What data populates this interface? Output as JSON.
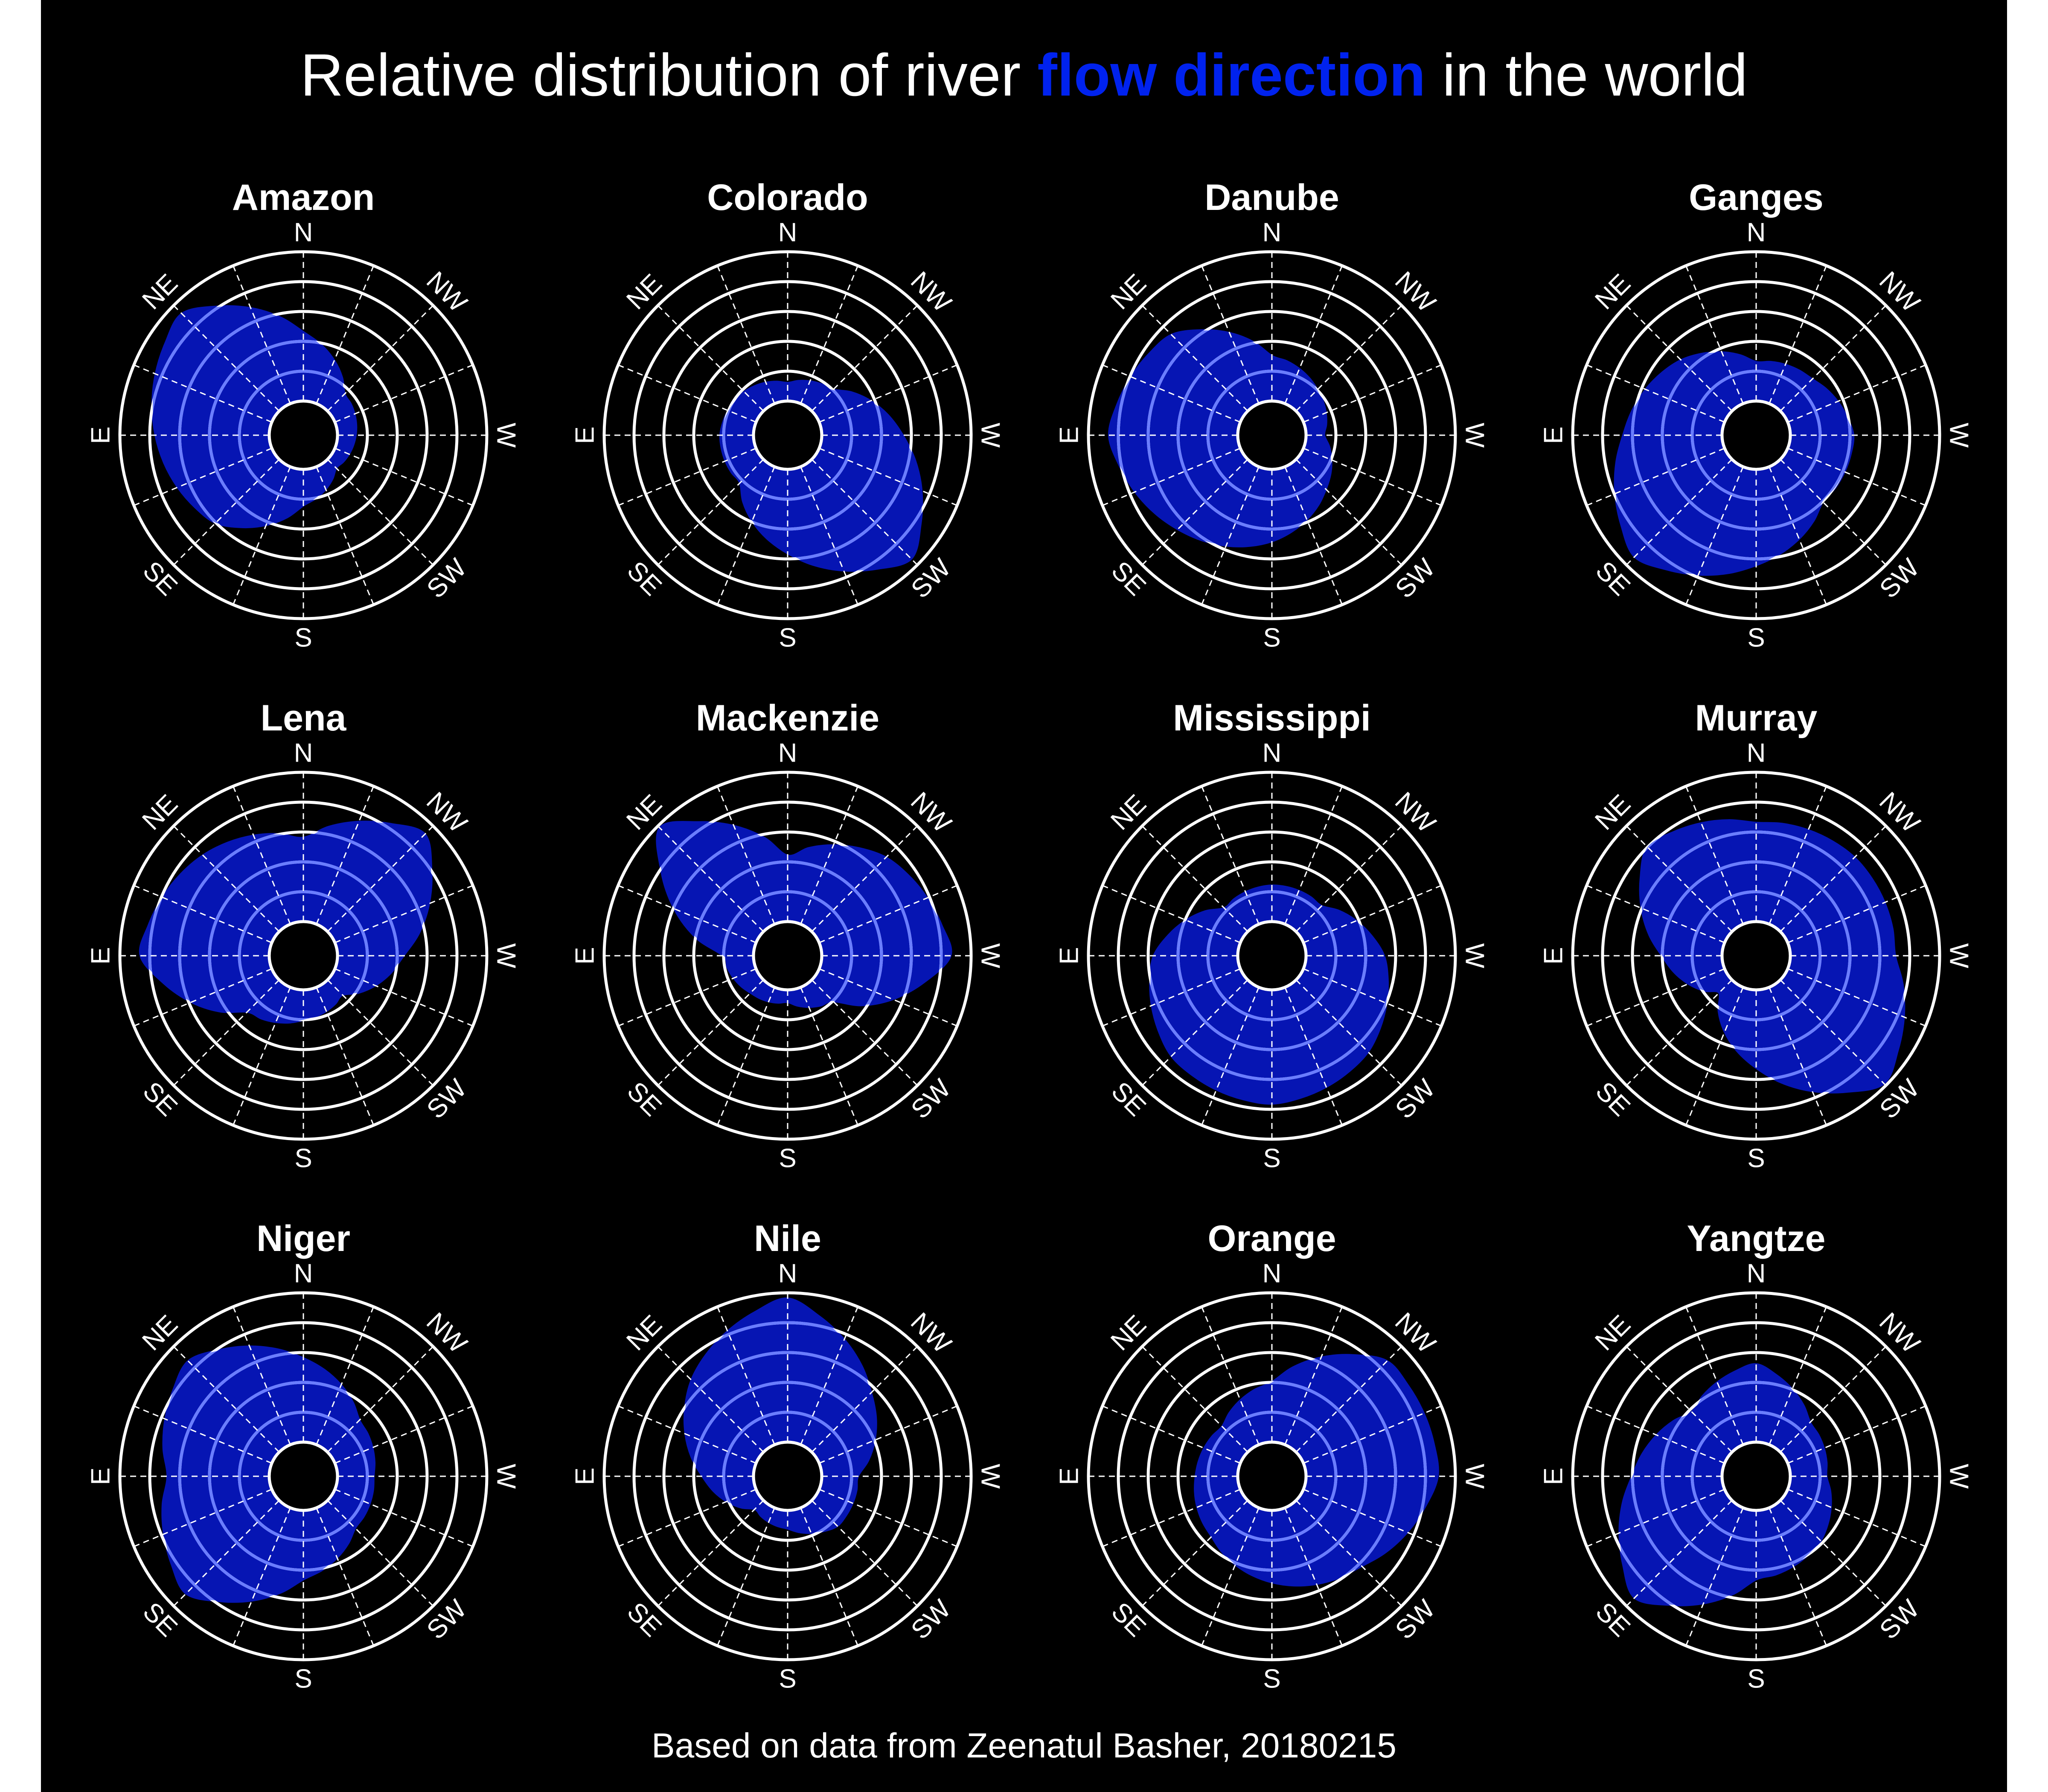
{
  "title": {
    "prefix": "Relative distribution of river ",
    "highlight": "flow direction",
    "suffix": " in the world"
  },
  "caption": "Based on data from Zeenatul Basher, 20180215",
  "colors": {
    "background": "#000000",
    "fill": "#0615b3",
    "highlight_text": "#0022ee",
    "ring": "#ffffff",
    "ring_inside": "#6a7dff",
    "spoke": "#ffffff"
  },
  "chart_data": {
    "type": "radar",
    "layout": "facet-grid-3x4",
    "directions": [
      "N",
      "NW",
      "W",
      "SW",
      "S",
      "SE",
      "E",
      "NE"
    ],
    "direction_order_note": "clockwise from top",
    "radial_rings": 5,
    "inner_hole": true,
    "rmax": 5,
    "grid": true,
    "facets": [
      {
        "title": "Amazon",
        "values": [
          2.3,
          0.8,
          0.6,
          0.4,
          1.2,
          3.0,
          3.8,
          4.6
        ]
      },
      {
        "title": "Colorado",
        "values": [
          0.6,
          1.0,
          2.7,
          4.7,
          2.8,
          1.1,
          1.1,
          0.9
        ]
      },
      {
        "title": "Danube",
        "values": [
          1.5,
          1.0,
          0.6,
          1.4,
          2.4,
          3.3,
          4.3,
          3.6
        ]
      },
      {
        "title": "Ganges",
        "values": [
          1.3,
          1.5,
          2.1,
          2.0,
          3.2,
          4.6,
          3.3,
          2.4
        ]
      },
      {
        "title": "Lena",
        "values": [
          2.8,
          4.6,
          2.2,
          0.7,
          1.0,
          1.5,
          4.3,
          3.6
        ]
      },
      {
        "title": "Mackenzie",
        "values": [
          2.2,
          3.5,
          4.3,
          1.0,
          0.4,
          0.6,
          1.0,
          4.9
        ]
      },
      {
        "title": "Mississippi",
        "values": [
          1.2,
          1.2,
          2.6,
          3.4,
          3.8,
          3.6,
          2.8,
          1.1
        ]
      },
      {
        "title": "Murray",
        "values": [
          3.3,
          3.5,
          3.5,
          4.9,
          2.6,
          0.6,
          2.0,
          4.0
        ]
      },
      {
        "title": "Niger",
        "values": [
          2.8,
          1.5,
          1.2,
          1.3,
          2.3,
          4.4,
          3.4,
          4.3
        ]
      },
      {
        "title": "Nile",
        "values": [
          4.8,
          2.8,
          1.2,
          1.2,
          0.6,
          0.4,
          1.7,
          3.4
        ]
      },
      {
        "title": "Orange",
        "values": [
          2.0,
          4.3,
          4.4,
          3.1,
          2.4,
          1.7,
          1.4,
          1.2
        ]
      },
      {
        "title": "Yangtze",
        "values": [
          2.6,
          1.4,
          1.2,
          1.9,
          2.3,
          4.6,
          3.0,
          1.9
        ]
      }
    ]
  }
}
